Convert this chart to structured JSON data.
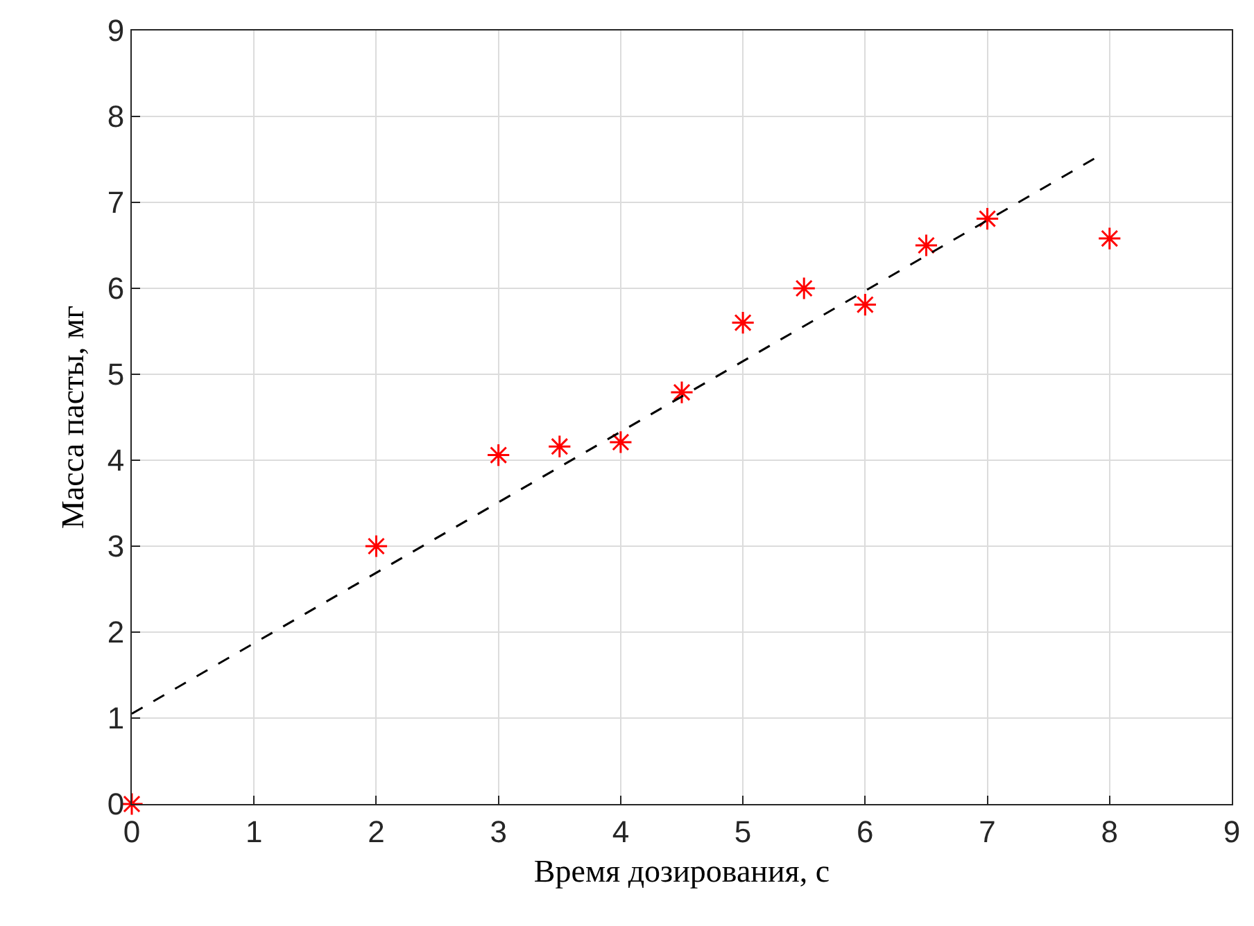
{
  "chart_data": {
    "type": "scatter",
    "xlabel": "Время дозирования, с",
    "ylabel": "Масса пасты, мг",
    "x": [
      0,
      2,
      3,
      3.5,
      4,
      4.5,
      5,
      5.5,
      6,
      6.5,
      7,
      8
    ],
    "series": [
      {
        "color": "#ff0000",
        "marker": "cross",
        "values": [
          0,
          3.0,
          4.06,
          4.16,
          4.21,
          4.79,
          5.6,
          6.0,
          5.81,
          6.5,
          6.81,
          6.58
        ]
      },
      {
        "type": "line",
        "color": "#000000",
        "line_style": "dashed",
        "marker": "none",
        "x": [
          0,
          7.9
        ],
        "values": [
          1.05,
          7.53
        ]
      }
    ],
    "xlim": [
      0,
      9
    ],
    "xticks": [
      0,
      1,
      2,
      3,
      4,
      5,
      6,
      7,
      8,
      9
    ],
    "ylim": [
      0,
      9
    ],
    "yticks": [
      0,
      1,
      2,
      3,
      4,
      5,
      6,
      7,
      8,
      9
    ],
    "grid": true
  }
}
